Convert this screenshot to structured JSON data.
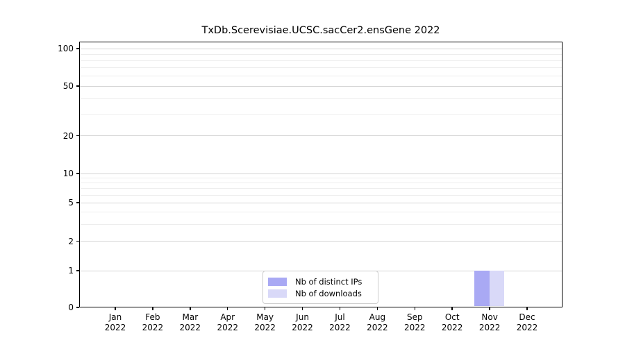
{
  "chart_data": {
    "type": "bar",
    "title": "TxDb.Scerevisiae.UCSC.sacCer2.ensGene 2022",
    "categories": [
      "Jan",
      "Feb",
      "Mar",
      "Apr",
      "May",
      "Jun",
      "Jul",
      "Aug",
      "Sep",
      "Oct",
      "Nov",
      "Dec"
    ],
    "x_year_label": "2022",
    "series": [
      {
        "name": "Nb of distinct IPs",
        "color": "#a9a9f4",
        "values": [
          0,
          0,
          0,
          0,
          0,
          0,
          0,
          0,
          0,
          0,
          1,
          0
        ]
      },
      {
        "name": "Nb of downloads",
        "color": "#d9d9f8",
        "values": [
          0,
          0,
          0,
          0,
          0,
          0,
          0,
          0,
          0,
          0,
          1,
          0
        ]
      }
    ],
    "yscale": "symlog",
    "ylim": [
      0,
      114
    ],
    "yticks_major": [
      0,
      1,
      2,
      5,
      10,
      20,
      50,
      100
    ],
    "yticks_minor": [
      3,
      4,
      6,
      7,
      8,
      9,
      30,
      40,
      60,
      70,
      80,
      90
    ],
    "grid": "horizontal",
    "legend_position": "lower center"
  }
}
